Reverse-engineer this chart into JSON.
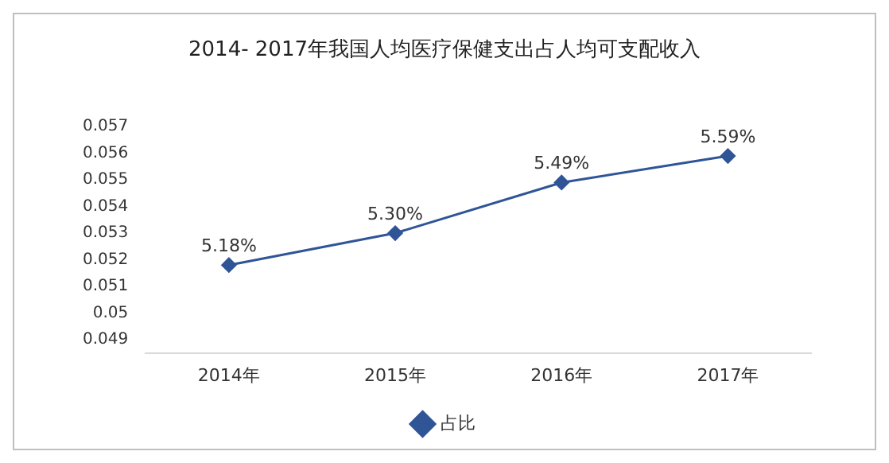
{
  "chart_data": {
    "type": "line",
    "title": "2014- 2017年我国人均医疗保健支出占人均可支配收入",
    "categories": [
      "2014年",
      "2015年",
      "2016年",
      "2017年"
    ],
    "series": [
      {
        "name": "占比",
        "color": "#2f5597",
        "values": [
          0.0518,
          0.053,
          0.0549,
          0.0559
        ],
        "value_labels": [
          "5.18%",
          "5.30%",
          "5.49%",
          "5.59%"
        ]
      }
    ],
    "ylim": [
      0.0485,
      0.057
    ],
    "yticks": [
      0.049,
      0.05,
      0.051,
      0.052,
      0.053,
      0.054,
      0.055,
      0.056,
      0.057
    ],
    "grid": false,
    "legend": "bottom",
    "marker": "diamond",
    "line_style": "solid"
  }
}
